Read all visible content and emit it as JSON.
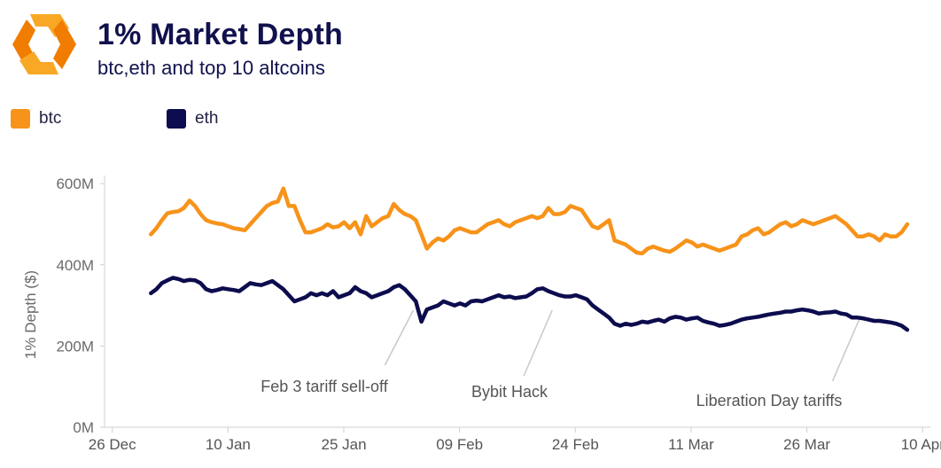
{
  "header": {
    "title": "1% Market Depth",
    "subtitle": "btc,eth and top 10 altcoins"
  },
  "colors": {
    "btc": "#f7931a",
    "eth": "#0c0c4e",
    "axis": "#d0d0d0",
    "text": "#6a6a6a",
    "logo_dark": "#f07d00",
    "logo_light": "#f9a825"
  },
  "legend": [
    {
      "name": "btc",
      "color": "#f7931a"
    },
    {
      "name": "eth",
      "color": "#0c0c4e"
    }
  ],
  "chart_data": {
    "type": "line",
    "ylabel": "1% Depth ($)",
    "ylim": [
      0,
      620
    ],
    "yticks": [
      {
        "value": 0,
        "label": "0M"
      },
      {
        "value": 200,
        "label": "200M"
      },
      {
        "value": 400,
        "label": "400M"
      },
      {
        "value": 600,
        "label": "600M"
      }
    ],
    "xlim": [
      "2024-12-25",
      "2025-04-11"
    ],
    "xticks": [
      {
        "date": "2024-12-26",
        "label": "26 Dec"
      },
      {
        "date": "2025-01-10",
        "label": "10 Jan"
      },
      {
        "date": "2025-01-25",
        "label": "25 Jan"
      },
      {
        "date": "2025-02-09",
        "label": "09 Feb"
      },
      {
        "date": "2025-02-24",
        "label": "24 Feb"
      },
      {
        "date": "2025-03-11",
        "label": "11 Mar"
      },
      {
        "date": "2025-03-26",
        "label": "26 Mar"
      },
      {
        "date": "2025-04-10",
        "label": "10 Apr"
      }
    ],
    "grid": false,
    "legend_position": "top-left",
    "start_date": "2024-12-31",
    "series": [
      {
        "name": "btc",
        "color": "#f7931a",
        "values": [
          475,
          490,
          510,
          527,
          530,
          532,
          540,
          558,
          545,
          525,
          510,
          505,
          502,
          500,
          495,
          490,
          488,
          485,
          500,
          515,
          530,
          545,
          552,
          556,
          588,
          545,
          545,
          510,
          480,
          480,
          485,
          490,
          500,
          492,
          495,
          505,
          490,
          505,
          475,
          520,
          495,
          505,
          515,
          520,
          550,
          535,
          525,
          520,
          510,
          475,
          440,
          455,
          465,
          460,
          470,
          485,
          490,
          485,
          480,
          480,
          490,
          500,
          505,
          510,
          500,
          495,
          505,
          510,
          515,
          520,
          515,
          520,
          540,
          525,
          525,
          530,
          545,
          540,
          535,
          515,
          495,
          490,
          500,
          510,
          460,
          455,
          450,
          440,
          430,
          428,
          440,
          445,
          440,
          435,
          432,
          440,
          450,
          460,
          455,
          445,
          450,
          445,
          440,
          435,
          440,
          445,
          450,
          470,
          475,
          485,
          490,
          475,
          480,
          490,
          500,
          505,
          495,
          500,
          510,
          505,
          500,
          505,
          510,
          515,
          520,
          510,
          500,
          485,
          470,
          470,
          475,
          470,
          460,
          475,
          470,
          470,
          480,
          500
        ]
      },
      {
        "name": "eth",
        "color": "#0c0c4e",
        "values": [
          330,
          340,
          355,
          362,
          368,
          365,
          360,
          363,
          362,
          355,
          340,
          335,
          338,
          342,
          340,
          338,
          335,
          345,
          355,
          352,
          350,
          355,
          360,
          350,
          340,
          325,
          310,
          315,
          320,
          330,
          325,
          330,
          325,
          335,
          320,
          325,
          330,
          345,
          335,
          330,
          320,
          325,
          330,
          335,
          345,
          350,
          340,
          325,
          310,
          260,
          290,
          295,
          300,
          310,
          305,
          300,
          305,
          300,
          310,
          312,
          310,
          315,
          320,
          325,
          320,
          322,
          318,
          320,
          322,
          330,
          340,
          342,
          335,
          330,
          325,
          322,
          322,
          325,
          320,
          315,
          300,
          290,
          280,
          270,
          255,
          250,
          255,
          252,
          255,
          260,
          258,
          262,
          265,
          260,
          268,
          272,
          270,
          265,
          268,
          270,
          262,
          258,
          255,
          250,
          252,
          255,
          260,
          265,
          268,
          270,
          272,
          275,
          278,
          280,
          282,
          285,
          285,
          288,
          290,
          288,
          285,
          280,
          282,
          283,
          285,
          280,
          278,
          270,
          270,
          268,
          265,
          262,
          262,
          260,
          258,
          255,
          250,
          240
        ]
      }
    ],
    "annotations": [
      {
        "label": "Feb 3 tariff sell-off",
        "date": "2025-02-03"
      },
      {
        "label": "Bybit Hack",
        "date": "2025-02-21"
      },
      {
        "label": "Liberation Day tariffs",
        "date": "2025-04-02"
      }
    ]
  }
}
